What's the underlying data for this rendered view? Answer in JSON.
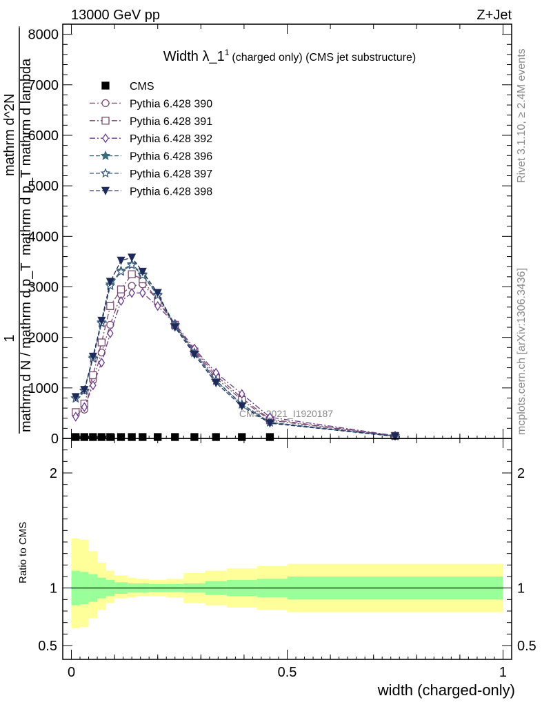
{
  "header": {
    "left": "13000 GeV pp",
    "right": "Z+Jet"
  },
  "plot_title": {
    "main": "Width λ_1",
    "sup": "1",
    "rest": "(charged only) (CMS jet substructure)"
  },
  "side_labels": {
    "rivet": "Rivet 3.1.10, ≥ 2.4M events",
    "mcplots": "mcplots.cern.ch [arXiv:1306.3436]"
  },
  "watermark": "CMS_2021_I1920187",
  "chart_data": [
    {
      "type": "line",
      "ylabel": {
        "numerator": "1",
        "denominator": "mathrm d N / mathrm d p_T",
        "right_numerator": "mathrm d^2N",
        "right_denominator": "mathrm d p_T mathrm d lambda"
      },
      "xlim": [
        -0.02,
        1.02
      ],
      "ylim": [
        0,
        8200
      ],
      "yticks": [
        0,
        1000,
        2000,
        3000,
        4000,
        5000,
        6000,
        7000,
        8000
      ],
      "ytick_labels": [
        "0",
        "1000",
        "2000",
        "3000",
        "4000",
        "5000",
        "6000",
        "7000",
        "8000"
      ],
      "xticks": [
        0,
        0.5,
        1
      ],
      "legend_position": "top-left",
      "series": [
        {
          "name": "CMS",
          "marker": "filled-square",
          "color": "#000000",
          "x": [
            0.01,
            0.03,
            0.05,
            0.07,
            0.09,
            0.115,
            0.14,
            0.165,
            0.2,
            0.24,
            0.285,
            0.335,
            0.395,
            0.46
          ],
          "values": [
            0,
            0,
            0,
            0,
            0,
            0,
            0,
            0,
            0,
            0,
            0,
            0,
            0,
            0
          ]
        },
        {
          "name": "Pythia 6.428 390",
          "marker": "open-circle",
          "color": "#7a4a6e",
          "dash": "dashdot",
          "x": [
            0.01,
            0.03,
            0.05,
            0.07,
            0.09,
            0.115,
            0.14,
            0.165,
            0.2,
            0.24,
            0.285,
            0.335,
            0.395,
            0.46,
            0.75
          ],
          "values": [
            480,
            570,
            1150,
            1700,
            2250,
            2850,
            3020,
            3050,
            2750,
            2250,
            1750,
            1250,
            800,
            380,
            50
          ]
        },
        {
          "name": "Pythia 6.428 391",
          "marker": "open-square",
          "color": "#7a4a6e",
          "dash": "dashdot",
          "x": [
            0.01,
            0.03,
            0.05,
            0.07,
            0.09,
            0.115,
            0.14,
            0.165,
            0.2,
            0.24,
            0.285,
            0.335,
            0.395,
            0.46,
            0.75
          ],
          "values": [
            520,
            690,
            1250,
            1900,
            2620,
            2950,
            3250,
            3150,
            2720,
            2250,
            1720,
            1200,
            760,
            360,
            50
          ]
        },
        {
          "name": "Pythia 6.428 392",
          "marker": "open-diamond",
          "color": "#6a3a8e",
          "dash": "dashdot",
          "x": [
            0.01,
            0.03,
            0.05,
            0.07,
            0.09,
            0.115,
            0.14,
            0.165,
            0.2,
            0.24,
            0.285,
            0.335,
            0.395,
            0.46,
            0.75
          ],
          "values": [
            430,
            620,
            1050,
            1500,
            2080,
            2720,
            2880,
            2880,
            2620,
            2270,
            1780,
            1300,
            880,
            420,
            55
          ]
        },
        {
          "name": "Pythia 6.428 396",
          "marker": "filled-star",
          "color": "#3a6a7e",
          "dash": "dashed",
          "x": [
            0.01,
            0.03,
            0.05,
            0.07,
            0.09,
            0.115,
            0.14,
            0.165,
            0.2,
            0.24,
            0.285,
            0.335,
            0.395,
            0.46,
            0.75
          ],
          "values": [
            800,
            950,
            1600,
            2300,
            3050,
            3320,
            3450,
            3250,
            2850,
            2250,
            1700,
            1150,
            680,
            320,
            45
          ]
        },
        {
          "name": "Pythia 6.428 397",
          "marker": "open-star",
          "color": "#3a5a7e",
          "dash": "dashed",
          "x": [
            0.01,
            0.03,
            0.05,
            0.07,
            0.09,
            0.115,
            0.14,
            0.165,
            0.2,
            0.24,
            0.285,
            0.335,
            0.395,
            0.46,
            0.75
          ],
          "values": [
            790,
            940,
            1580,
            2280,
            3020,
            3300,
            3430,
            3230,
            2830,
            2230,
            1690,
            1140,
            670,
            315,
            45
          ]
        },
        {
          "name": "Pythia 6.428 398",
          "marker": "filled-triangle-down",
          "color": "#1e2a5a",
          "dash": "dashed",
          "x": [
            0.01,
            0.03,
            0.05,
            0.07,
            0.09,
            0.115,
            0.14,
            0.165,
            0.2,
            0.24,
            0.285,
            0.335,
            0.395,
            0.46,
            0.75
          ],
          "values": [
            820,
            960,
            1620,
            2330,
            3100,
            3520,
            3580,
            3300,
            2880,
            2200,
            1660,
            1100,
            640,
            300,
            40
          ]
        }
      ]
    },
    {
      "type": "area",
      "ylabel": "Ratio to CMS",
      "xlabel": "width (charged-only)",
      "xlim": [
        -0.02,
        1.02
      ],
      "ylim": [
        0.38,
        2.3
      ],
      "yticks": [
        0.5,
        1,
        2
      ],
      "ytick_labels": [
        "0.5",
        "1",
        "2"
      ],
      "xticks": [
        0,
        0.5,
        1
      ],
      "xtick_labels": [
        "0",
        "0.5",
        "1"
      ],
      "band_edges": [
        0,
        0.02,
        0.04,
        0.06,
        0.08,
        0.1,
        0.13,
        0.15,
        0.18,
        0.22,
        0.26,
        0.31,
        0.36,
        0.43,
        0.5,
        1.0
      ],
      "stat_band": {
        "color": "#99ff99",
        "lo": [
          0.85,
          0.86,
          0.88,
          0.91,
          0.93,
          0.95,
          0.96,
          0.96,
          0.965,
          0.965,
          0.96,
          0.94,
          0.93,
          0.92,
          0.9
        ],
        "hi": [
          1.15,
          1.14,
          1.12,
          1.09,
          1.07,
          1.05,
          1.04,
          1.04,
          1.035,
          1.035,
          1.04,
          1.06,
          1.07,
          1.08,
          1.1
        ]
      },
      "syst_band": {
        "color": "#ffff99",
        "lo": [
          0.65,
          0.66,
          0.74,
          0.81,
          0.87,
          0.91,
          0.92,
          0.93,
          0.93,
          0.92,
          0.87,
          0.85,
          0.83,
          0.81,
          0.79
        ],
        "hi": [
          1.43,
          1.42,
          1.32,
          1.22,
          1.15,
          1.11,
          1.09,
          1.08,
          1.07,
          1.08,
          1.13,
          1.15,
          1.17,
          1.19,
          1.21
        ]
      },
      "reference_line": 1
    }
  ]
}
